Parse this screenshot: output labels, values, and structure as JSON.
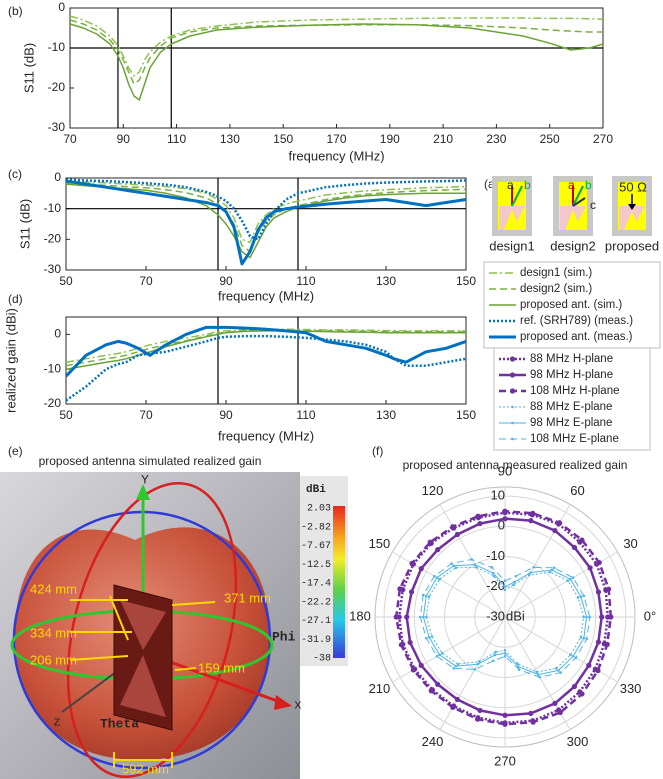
{
  "chart_data": [
    {
      "type": "line",
      "label": "(b)",
      "ylabel": "S11 (dB)",
      "xlabel": "frequency (MHz)",
      "x": [
        70,
        75,
        80,
        85,
        88,
        90,
        92,
        94,
        96,
        98,
        100,
        104,
        108,
        115,
        125,
        140,
        160,
        180,
        200,
        220,
        240,
        250,
        258,
        265,
        270
      ],
      "xlim": [
        70,
        270
      ],
      "xticks": [
        70,
        90,
        110,
        130,
        150,
        170,
        190,
        210,
        230,
        250,
        270
      ],
      "ylim": [
        -30,
        0
      ],
      "yticks": [
        0,
        -10,
        -20,
        -30
      ],
      "ref_x": [
        88,
        108
      ],
      "ref_y": [
        -10
      ],
      "series": [
        {
          "color": "#8dc04f",
          "dash": "dashdot",
          "width": 1.5,
          "values": [
            -2,
            -3,
            -4.5,
            -7,
            -9.5,
            -12,
            -15,
            -17,
            -16,
            -13,
            -11,
            -8.5,
            -7,
            -5.5,
            -4.5,
            -3.5,
            -3,
            -2.8,
            -2.6,
            -2.5,
            -2.5,
            -2.6,
            -2.6,
            -2.7,
            -2.8
          ]
        },
        {
          "color": "#78b040",
          "dash": "dash",
          "width": 1.5,
          "values": [
            -3,
            -4,
            -5.5,
            -8,
            -10.5,
            -13,
            -16,
            -19,
            -18,
            -15,
            -12.5,
            -9.5,
            -7.5,
            -6,
            -5,
            -4.5,
            -4.3,
            -4.2,
            -4.2,
            -4.4,
            -5,
            -5.5,
            -5.8,
            -6,
            -6
          ]
        },
        {
          "color": "#6aa336",
          "dash": "solid",
          "width": 1.5,
          "values": [
            -4,
            -5,
            -6.5,
            -9,
            -12,
            -15,
            -19,
            -22,
            -23,
            -19,
            -15,
            -11,
            -9,
            -7,
            -5.5,
            -4.8,
            -4.3,
            -4,
            -4.2,
            -5,
            -7,
            -8.8,
            -10.5,
            -10,
            -9
          ]
        }
      ]
    },
    {
      "type": "line",
      "label": "(c)",
      "ylabel": "S11 (dB)",
      "xlabel": "frequency (MHz)",
      "x": [
        50,
        55,
        60,
        65,
        70,
        75,
        80,
        85,
        88,
        90,
        92,
        94,
        96,
        98,
        100,
        102,
        105,
        108,
        115,
        120,
        125,
        130,
        135,
        140,
        145,
        150
      ],
      "xlim": [
        50,
        150
      ],
      "xticks": [
        50,
        70,
        90,
        110,
        130,
        150
      ],
      "ylim": [
        -30,
        0
      ],
      "yticks": [
        0,
        -10,
        -20,
        -30
      ],
      "ref_x": [
        88,
        108
      ],
      "ref_y": [
        -10
      ],
      "legend": true,
      "series": [
        {
          "name": "design1 (sim.)",
          "color": "#8dc04f",
          "dash": "dashdot",
          "width": 1.5,
          "values": [
            -1,
            -1.3,
            -1.6,
            -2,
            -2.3,
            -2.8,
            -3.5,
            -5,
            -7,
            -9,
            -13,
            -20,
            -21,
            -15,
            -12,
            -10,
            -8.5,
            -7.5,
            -5.5,
            -4.8,
            -4.2,
            -3.8,
            -3.5,
            -3.2,
            -3,
            -2.8
          ]
        },
        {
          "name": "design2 (sim.)",
          "color": "#78b040",
          "dash": "dash",
          "width": 1.5,
          "values": [
            -1.5,
            -2,
            -2.4,
            -2.8,
            -3.2,
            -3.8,
            -4.8,
            -6.5,
            -8.5,
            -11,
            -15,
            -22,
            -24,
            -18,
            -14,
            -12,
            -10,
            -9,
            -7,
            -6,
            -5.3,
            -4.8,
            -4.4,
            -4.1,
            -3.9,
            -3.7
          ]
        },
        {
          "name": "proposed ant. (sim.)",
          "color": "#6aa336",
          "dash": "solid",
          "width": 1.5,
          "values": [
            -2,
            -2.5,
            -3,
            -3.5,
            -4,
            -5,
            -6.5,
            -9,
            -12,
            -15,
            -19,
            -24,
            -26,
            -21,
            -16,
            -13,
            -11,
            -9.5,
            -7.5,
            -6.5,
            -5.8,
            -5.4,
            -5.2,
            -5,
            -5,
            -5
          ]
        },
        {
          "name": "ref. (SRH789) (meas.)",
          "color": "#0070c0",
          "dash": "dot",
          "width": 2.5,
          "values": [
            -0.5,
            -0.8,
            -1,
            -1.3,
            -1.7,
            -2.2,
            -3,
            -4.5,
            -6,
            -7.5,
            -10,
            -14,
            -19,
            -20,
            -15,
            -11,
            -7,
            -5,
            -3,
            -2.3,
            -1.8,
            -1.5,
            -1.3,
            -1.1,
            -1,
            -0.8
          ]
        },
        {
          "name": "proposed ant. (meas.)",
          "color": "#0070c0",
          "dash": "solid",
          "width": 3,
          "values": [
            -1,
            -2,
            -3,
            -4,
            -5,
            -6,
            -7,
            -8,
            -9,
            -11,
            -16,
            -28,
            -24,
            -17,
            -13,
            -11,
            -10,
            -9.5,
            -8.5,
            -8,
            -7.5,
            -7,
            -8,
            -9,
            -8,
            -7
          ]
        }
      ]
    },
    {
      "type": "line",
      "label": "(d)",
      "ylabel": "realized gain (dBi)",
      "xlabel": "frequency (MHz)",
      "x": [
        50,
        55,
        60,
        63,
        65,
        68,
        71,
        75,
        80,
        85,
        88,
        90,
        95,
        100,
        105,
        110,
        115,
        120,
        125,
        130,
        132,
        135,
        140,
        145,
        150
      ],
      "xlim": [
        50,
        150
      ],
      "xticks": [
        50,
        70,
        90,
        110,
        130,
        150
      ],
      "ylim": [
        -20,
        5
      ],
      "yticks": [
        0,
        -10,
        -20
      ],
      "ref_x": [
        88,
        108
      ],
      "series": [
        {
          "color": "#8dc04f",
          "dash": "dashdot",
          "width": 1.5,
          "values": [
            -8,
            -7,
            -6,
            -5.5,
            -5,
            -4,
            -3,
            -2,
            -1,
            0,
            0.8,
            1,
            1.3,
            1.5,
            1.5,
            1.4,
            1.3,
            1.3,
            1.2,
            1.1,
            1.1,
            1,
            1,
            1,
            1
          ]
        },
        {
          "color": "#78b040",
          "dash": "dash",
          "width": 1.5,
          "values": [
            -9,
            -8,
            -7,
            -6.5,
            -6,
            -5,
            -4,
            -3,
            -1.8,
            -0.5,
            0.3,
            0.6,
            1,
            1.2,
            1.2,
            1.1,
            1,
            1,
            0.9,
            0.8,
            0.8,
            0.8,
            0.8,
            0.8,
            0.8
          ]
        },
        {
          "color": "#6aa336",
          "dash": "solid",
          "width": 1.5,
          "values": [
            -10,
            -9,
            -8,
            -7.5,
            -7,
            -6,
            -5,
            -3.5,
            -2,
            -0.7,
            0,
            0.5,
            0.9,
            1,
            1,
            0.9,
            0.8,
            0.7,
            0.6,
            0.5,
            0.5,
            0.5,
            0.5,
            0.5,
            0.5
          ]
        },
        {
          "color": "#0070c0",
          "dash": "dot",
          "width": 2.5,
          "values": [
            -19,
            -15,
            -10,
            -8.5,
            -8,
            -6,
            -5.5,
            -5,
            -3.5,
            -2,
            -1,
            -0.7,
            -0.5,
            -0.5,
            -0.7,
            -1,
            -1.5,
            -2,
            -3,
            -5,
            -7,
            -9,
            -9,
            -8,
            -7
          ]
        },
        {
          "color": "#0070c0",
          "dash": "solid",
          "width": 3,
          "values": [
            -12,
            -6,
            -3,
            -2,
            -2.5,
            -4,
            -6,
            -3,
            0,
            2,
            2,
            2,
            1.8,
            1.5,
            1,
            0.5,
            -2,
            -3,
            -4,
            -6,
            -7,
            -8,
            -5,
            -4,
            -2
          ]
        }
      ]
    },
    {
      "type": "polar",
      "label": "(f)",
      "title": "proposed antenna measured realized gain",
      "theta": [
        0,
        15,
        30,
        45,
        60,
        75,
        90,
        105,
        120,
        135,
        150,
        165,
        180,
        195,
        210,
        225,
        240,
        255,
        270,
        285,
        300,
        315,
        330,
        345
      ],
      "rlim": [
        -30,
        13
      ],
      "rticks": [
        10,
        0,
        -10,
        -20,
        -30
      ],
      "r_unit": "dBi",
      "thetaticks": [
        {
          "value": 0,
          "label": "0°"
        },
        30,
        60,
        90,
        120,
        150,
        180,
        210,
        240,
        270,
        300,
        330
      ],
      "series": [
        {
          "name": "88 MHz H-plane",
          "color": "#7030a0",
          "dash": "dot",
          "width": 2.5,
          "marker": "o",
          "values": [
            4,
            4.5,
            5,
            5,
            5.5,
            5,
            4.5,
            4,
            4,
            4.5,
            5,
            5,
            5,
            5,
            4.5,
            4,
            4,
            4.5,
            5,
            5.5,
            5.5,
            5,
            4.5,
            4
          ]
        },
        {
          "name": "98 MHz H-plane",
          "color": "#7030a0",
          "dash": "solid",
          "width": 2.5,
          "marker": "o",
          "values": [
            2,
            2,
            2.5,
            2.5,
            3,
            3,
            2.5,
            2,
            1.5,
            1.5,
            2,
            2,
            2.5,
            2.5,
            2,
            1.5,
            1.5,
            2,
            2.5,
            3,
            3,
            2.5,
            2,
            2
          ]
        },
        {
          "name": "108 MHz H-plane",
          "color": "#7030a0",
          "dash": "dash",
          "width": 2.5,
          "marker": "o",
          "values": [
            5,
            5.5,
            6,
            6,
            6,
            5.5,
            5,
            4.5,
            4.5,
            5,
            5.5,
            6,
            6,
            5.5,
            5,
            4.5,
            4.5,
            5,
            5.5,
            6,
            6.5,
            6,
            5.5,
            5
          ]
        },
        {
          "name": "88 MHz E-plane",
          "color": "#4fb4e6",
          "dash": "dot",
          "width": 1,
          "marker": "s",
          "values": [
            -4,
            -5,
            -6,
            -9,
            -14,
            -19,
            -21,
            -16,
            -11,
            -7,
            -5,
            -4,
            -4,
            -5,
            -6,
            -8,
            -13,
            -18,
            -19,
            -14,
            -9,
            -6,
            -5,
            -4
          ]
        },
        {
          "name": "98 MHz E-plane",
          "color": "#4fb4e6",
          "dash": "solid",
          "width": 1,
          "marker": "s",
          "values": [
            -3,
            -4,
            -5,
            -8,
            -13,
            -18,
            -20,
            -15,
            -10,
            -6,
            -4,
            -3,
            -3,
            -4,
            -5,
            -7,
            -12,
            -17,
            -18,
            -13,
            -8,
            -5,
            -4,
            -3
          ]
        },
        {
          "name": "108 MHz E-plane",
          "color": "#4fb4e6",
          "dash": "dash",
          "width": 1,
          "marker": "s",
          "values": [
            -2,
            -3,
            -4,
            -7,
            -11,
            -16,
            -18,
            -13,
            -8,
            -5,
            -3,
            -2,
            -2,
            -3,
            -4,
            -6,
            -10,
            -15,
            -17,
            -12,
            -7,
            -4,
            -3,
            -2
          ]
        }
      ]
    }
  ],
  "panel_a": {
    "label": "(a)",
    "designs": [
      "design1",
      "design2",
      "proposed"
    ],
    "annotations": [
      "a",
      "b",
      "a",
      "b",
      "c",
      "50 Ω"
    ]
  },
  "panel_e": {
    "label": "(e)",
    "title": "proposed antenna simulated realized gain",
    "axes": [
      "Y",
      "x",
      "z"
    ],
    "angles": [
      "Phi",
      "Theta"
    ],
    "dimensions": [
      "424 mm",
      "334 mm",
      "206 mm",
      "371 mm",
      "159 mm",
      "592 mm"
    ],
    "colorbar": {
      "unit": "dBi",
      "ticks": [
        "2.03",
        "-2.82",
        "-7.67",
        "-12.5",
        "-17.4",
        "-22.2",
        "-27.1",
        "-31.9",
        "-38"
      ]
    }
  }
}
